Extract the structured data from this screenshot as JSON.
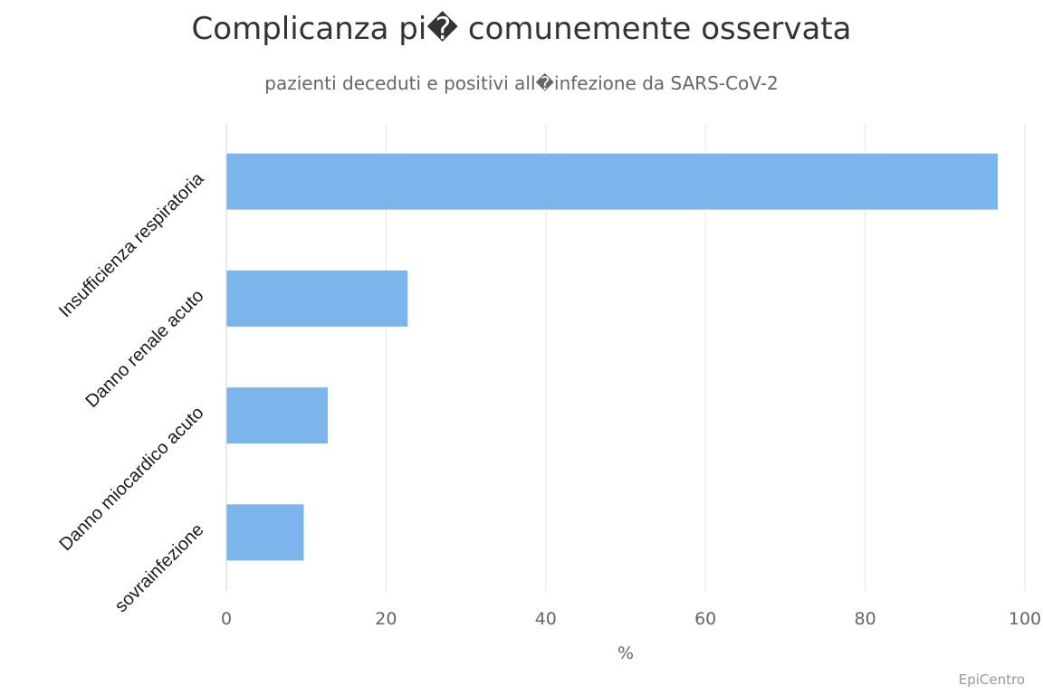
{
  "chart_data": {
    "type": "bar",
    "orientation": "horizontal",
    "title": "Complicanza pi� comunemente osservata",
    "subtitle": "pazienti deceduti e positivi all�infezione da SARS-CoV-2",
    "categories": [
      "Insufficienza respiratoria",
      "Danno renale acuto",
      "Danno miocardico acuto",
      "sovrainfezione"
    ],
    "values": [
      96.6,
      22.7,
      12.7,
      9.7
    ],
    "xlabel": "%",
    "ylabel": "",
    "xlim": [
      0,
      100
    ],
    "xticks": [
      0,
      20,
      40,
      60,
      80,
      100
    ],
    "grid": true,
    "bar_color": "#7cb5ec"
  },
  "credits": "EpiCentro"
}
